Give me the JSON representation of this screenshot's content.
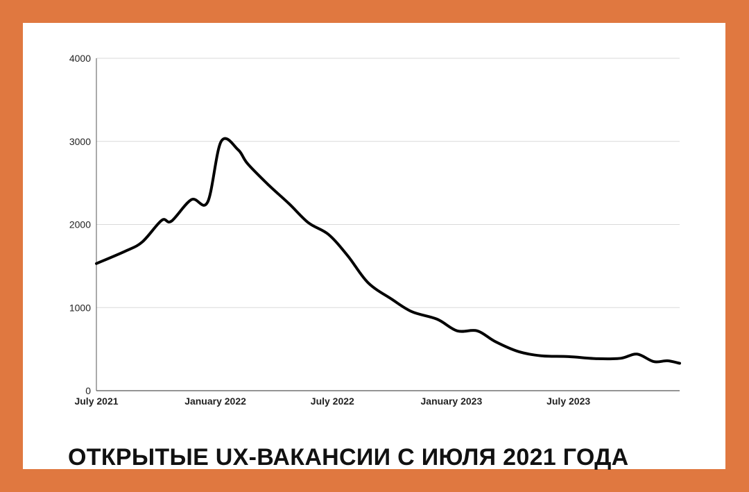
{
  "title": "ОТКРЫТЫЕ UX-ВАКАНСИИ С ИЮЛЯ 2021 ГОДА",
  "colors": {
    "frame": "#e07840",
    "line": "#000000",
    "grid": "#d9d9d9"
  },
  "chart_data": {
    "type": "line",
    "title": "ОТКРЫТЫЕ UX-ВАКАНСИИ С ИЮЛЯ 2021 ГОДА",
    "xlabel": "",
    "ylabel": "",
    "ylim": [
      0,
      4000
    ],
    "y_ticks": [
      0,
      1000,
      2000,
      3000,
      4000
    ],
    "x_range": [
      "2021-07-01",
      "2023-12-20"
    ],
    "x_ticks": [
      {
        "label": "July 2021",
        "date": "2021-07-01"
      },
      {
        "label": "January 2022",
        "date": "2022-01-01"
      },
      {
        "label": "July 2022",
        "date": "2022-07-01"
      },
      {
        "label": "January 2023",
        "date": "2023-01-01"
      },
      {
        "label": "July 2023",
        "date": "2023-07-01"
      }
    ],
    "grid": true,
    "legend": "none",
    "series": [
      {
        "x": [
          "2021-07-01",
          "2021-08-15",
          "2021-09-10",
          "2021-10-10",
          "2021-10-25",
          "2021-11-25",
          "2021-12-20",
          "2022-01-10",
          "2022-02-05",
          "2022-02-20",
          "2022-03-25",
          "2022-04-25",
          "2022-05-25",
          "2022-06-25",
          "2022-07-25",
          "2022-08-25",
          "2022-10-01",
          "2022-11-01",
          "2022-12-10",
          "2023-01-10",
          "2023-02-10",
          "2023-03-10",
          "2023-04-15",
          "2023-05-20",
          "2023-07-01",
          "2023-08-15",
          "2023-09-20",
          "2023-10-15",
          "2023-11-10",
          "2023-12-01",
          "2023-12-20"
        ],
        "y": [
          1530,
          1680,
          1790,
          2050,
          2040,
          2300,
          2270,
          3000,
          2900,
          2730,
          2470,
          2250,
          2020,
          1880,
          1620,
          1300,
          1100,
          950,
          860,
          720,
          720,
          590,
          470,
          420,
          410,
          385,
          390,
          440,
          350,
          360,
          330
        ]
      }
    ]
  }
}
